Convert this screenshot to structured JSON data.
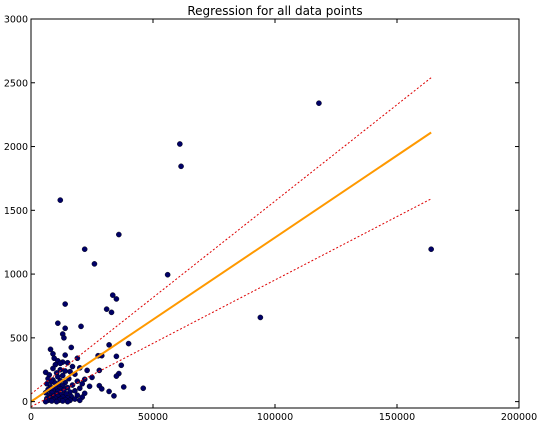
{
  "chart_data": {
    "type": "scatter",
    "title": "Regression for all data points",
    "xlabel": "",
    "ylabel": "",
    "xlim": [
      0,
      200000
    ],
    "ylim": [
      -50,
      3000
    ],
    "x_ticks": [
      "0",
      "50000",
      "100000",
      "150000",
      "200000"
    ],
    "y_ticks": [
      "0",
      "500",
      "1000",
      "1500",
      "2000",
      "2500",
      "3000"
    ],
    "grid": false,
    "colors": {
      "points": "#000066",
      "fit": "#ff9900",
      "bounds": "#dd0000"
    },
    "points": [
      {
        "x": 118000,
        "y": 2340
      },
      {
        "x": 61000,
        "y": 2020
      },
      {
        "x": 61500,
        "y": 1845
      },
      {
        "x": 12000,
        "y": 1580
      },
      {
        "x": 36000,
        "y": 1310
      },
      {
        "x": 22000,
        "y": 1195
      },
      {
        "x": 26000,
        "y": 1080
      },
      {
        "x": 56000,
        "y": 995
      },
      {
        "x": 164000,
        "y": 1195
      },
      {
        "x": 33500,
        "y": 835
      },
      {
        "x": 35000,
        "y": 805
      },
      {
        "x": 14000,
        "y": 765
      },
      {
        "x": 31000,
        "y": 725
      },
      {
        "x": 33000,
        "y": 700
      },
      {
        "x": 94000,
        "y": 660
      },
      {
        "x": 11000,
        "y": 615
      },
      {
        "x": 20500,
        "y": 590
      },
      {
        "x": 14000,
        "y": 575
      },
      {
        "x": 13000,
        "y": 530
      },
      {
        "x": 13500,
        "y": 500
      },
      {
        "x": 40000,
        "y": 455
      },
      {
        "x": 32000,
        "y": 445
      },
      {
        "x": 16500,
        "y": 425
      },
      {
        "x": 8000,
        "y": 410
      },
      {
        "x": 9000,
        "y": 375
      },
      {
        "x": 14000,
        "y": 365
      },
      {
        "x": 29000,
        "y": 360
      },
      {
        "x": 27500,
        "y": 360
      },
      {
        "x": 35000,
        "y": 355
      },
      {
        "x": 9500,
        "y": 340
      },
      {
        "x": 19000,
        "y": 340
      },
      {
        "x": 11000,
        "y": 320
      },
      {
        "x": 13000,
        "y": 310
      },
      {
        "x": 15000,
        "y": 305
      },
      {
        "x": 12000,
        "y": 300
      },
      {
        "x": 10000,
        "y": 290
      },
      {
        "x": 37000,
        "y": 285
      },
      {
        "x": 17000,
        "y": 275
      },
      {
        "x": 20000,
        "y": 265
      },
      {
        "x": 9000,
        "y": 260
      },
      {
        "x": 12000,
        "y": 250
      },
      {
        "x": 28000,
        "y": 245
      },
      {
        "x": 23000,
        "y": 245
      },
      {
        "x": 14000,
        "y": 240
      },
      {
        "x": 16000,
        "y": 235
      },
      {
        "x": 6000,
        "y": 230
      },
      {
        "x": 10500,
        "y": 225
      },
      {
        "x": 36000,
        "y": 220
      },
      {
        "x": 18000,
        "y": 215
      },
      {
        "x": 7500,
        "y": 210
      },
      {
        "x": 13000,
        "y": 205
      },
      {
        "x": 35000,
        "y": 200
      },
      {
        "x": 11000,
        "y": 195
      },
      {
        "x": 25000,
        "y": 190
      },
      {
        "x": 7000,
        "y": 180
      },
      {
        "x": 15500,
        "y": 180
      },
      {
        "x": 22000,
        "y": 175
      },
      {
        "x": 9000,
        "y": 170
      },
      {
        "x": 12000,
        "y": 165
      },
      {
        "x": 19000,
        "y": 160
      },
      {
        "x": 8500,
        "y": 155
      },
      {
        "x": 14000,
        "y": 150
      },
      {
        "x": 10000,
        "y": 145
      },
      {
        "x": 21000,
        "y": 140
      },
      {
        "x": 6500,
        "y": 140
      },
      {
        "x": 11500,
        "y": 135
      },
      {
        "x": 17000,
        "y": 130
      },
      {
        "x": 13000,
        "y": 125
      },
      {
        "x": 28000,
        "y": 125
      },
      {
        "x": 24000,
        "y": 120
      },
      {
        "x": 38000,
        "y": 115
      },
      {
        "x": 8000,
        "y": 115
      },
      {
        "x": 10000,
        "y": 110
      },
      {
        "x": 15000,
        "y": 110
      },
      {
        "x": 20000,
        "y": 105
      },
      {
        "x": 46000,
        "y": 105
      },
      {
        "x": 12000,
        "y": 100
      },
      {
        "x": 29000,
        "y": 100
      },
      {
        "x": 7000,
        "y": 95
      },
      {
        "x": 9000,
        "y": 90
      },
      {
        "x": 13500,
        "y": 90
      },
      {
        "x": 18000,
        "y": 85
      },
      {
        "x": 11000,
        "y": 80
      },
      {
        "x": 32000,
        "y": 80
      },
      {
        "x": 16000,
        "y": 75
      },
      {
        "x": 6000,
        "y": 70
      },
      {
        "x": 8500,
        "y": 70
      },
      {
        "x": 22000,
        "y": 65
      },
      {
        "x": 10500,
        "y": 60
      },
      {
        "x": 14500,
        "y": 60
      },
      {
        "x": 12500,
        "y": 55
      },
      {
        "x": 19000,
        "y": 50
      },
      {
        "x": 7500,
        "y": 50
      },
      {
        "x": 34000,
        "y": 45
      },
      {
        "x": 9500,
        "y": 45
      },
      {
        "x": 16500,
        "y": 40
      },
      {
        "x": 11000,
        "y": 40
      },
      {
        "x": 13000,
        "y": 35
      },
      {
        "x": 21000,
        "y": 35
      },
      {
        "x": 8000,
        "y": 30
      },
      {
        "x": 15000,
        "y": 30
      },
      {
        "x": 6500,
        "y": 25
      },
      {
        "x": 10000,
        "y": 25
      },
      {
        "x": 12000,
        "y": 20
      },
      {
        "x": 18000,
        "y": 20
      },
      {
        "x": 9000,
        "y": 15
      },
      {
        "x": 14000,
        "y": 15
      },
      {
        "x": 7000,
        "y": 10
      },
      {
        "x": 11500,
        "y": 10
      },
      {
        "x": 16000,
        "y": 10
      },
      {
        "x": 20000,
        "y": 10
      },
      {
        "x": 8500,
        "y": 5
      },
      {
        "x": 13000,
        "y": 5
      },
      {
        "x": 10500,
        "y": 0
      },
      {
        "x": 15000,
        "y": 0
      },
      {
        "x": 6000,
        "y": 0
      }
    ],
    "fit_line": [
      {
        "x": 0,
        "y": 0
      },
      {
        "x": 164000,
        "y": 2110
      }
    ],
    "upper_bound": [
      {
        "x": 0,
        "y": 60
      },
      {
        "x": 164000,
        "y": 2540
      }
    ],
    "lower_bound": [
      {
        "x": 0,
        "y": -40
      },
      {
        "x": 164000,
        "y": 1590
      }
    ]
  }
}
